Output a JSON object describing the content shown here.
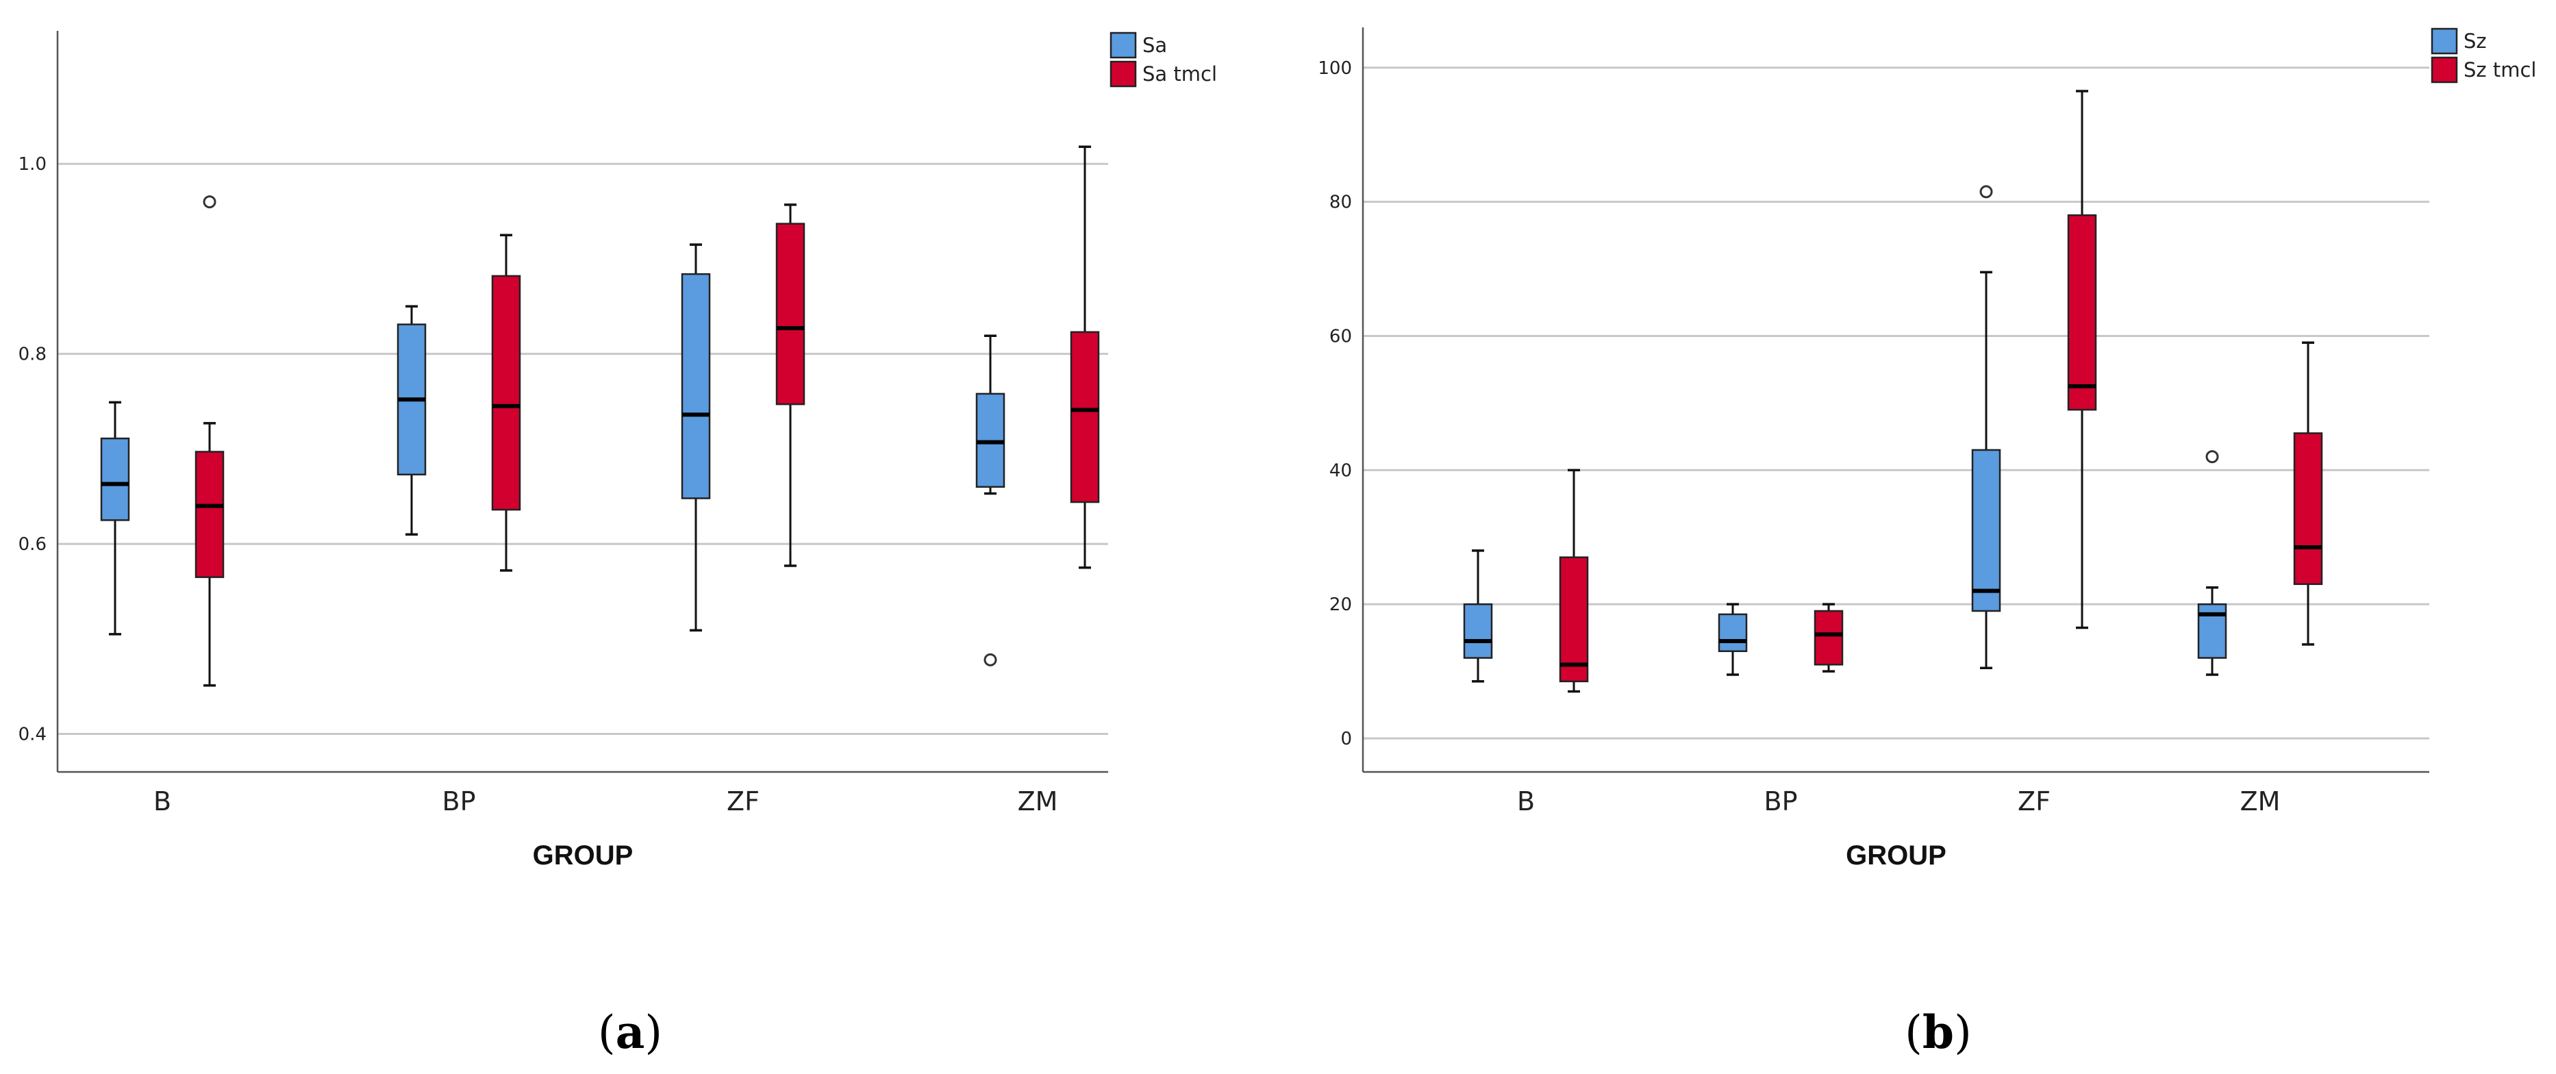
{
  "chart_data": [
    {
      "type": "boxplot",
      "panel_label": "a",
      "xlabel": "GROUP",
      "ylabel": "",
      "ylim": [
        0.36,
        1.14
      ],
      "yticks": [
        0.4,
        0.6,
        0.8,
        1.0
      ],
      "ytick_labels": [
        "0.4",
        "0.6",
        "0.8",
        "1.0"
      ],
      "categories": [
        "B",
        "BP",
        "ZF",
        "ZM"
      ],
      "legend_position": "top-right",
      "series": [
        {
          "name": "Sa",
          "color": "#5b9bdf",
          "boxes": [
            {
              "min": 0.505,
              "q1": 0.625,
              "median": 0.663,
              "q3": 0.711,
              "max": 0.749,
              "outliers": []
            },
            {
              "min": 0.61,
              "q1": 0.673,
              "median": 0.752,
              "q3": 0.831,
              "max": 0.85,
              "outliers": []
            },
            {
              "min": 0.509,
              "q1": 0.648,
              "median": 0.736,
              "q3": 0.884,
              "max": 0.915,
              "outliers": []
            },
            {
              "min": 0.653,
              "q1": 0.66,
              "median": 0.707,
              "q3": 0.758,
              "max": 0.819,
              "outliers": [
                0.478
              ]
            }
          ]
        },
        {
          "name": "Sa tmcl",
          "color": "#d2002e",
          "boxes": [
            {
              "min": 0.451,
              "q1": 0.565,
              "median": 0.64,
              "q3": 0.697,
              "max": 0.727,
              "outliers": [
                0.96
              ]
            },
            {
              "min": 0.572,
              "q1": 0.636,
              "median": 0.745,
              "q3": 0.882,
              "max": 0.925,
              "outliers": []
            },
            {
              "min": 0.577,
              "q1": 0.747,
              "median": 0.827,
              "q3": 0.937,
              "max": 0.957,
              "outliers": []
            },
            {
              "min": 0.575,
              "q1": 0.644,
              "median": 0.741,
              "q3": 0.823,
              "max": 1.018,
              "outliers": []
            }
          ]
        }
      ]
    },
    {
      "type": "boxplot",
      "panel_label": "b",
      "xlabel": "GROUP",
      "ylabel": "",
      "ylim": [
        -5,
        106
      ],
      "yticks": [
        0,
        20,
        40,
        60,
        80,
        100
      ],
      "ytick_labels": [
        "0",
        "20",
        "40",
        "60",
        "80",
        "100"
      ],
      "categories": [
        "B",
        "BP",
        "ZF",
        "ZM"
      ],
      "legend_position": "top-right",
      "series": [
        {
          "name": "Sz",
          "color": "#5b9bdf",
          "boxes": [
            {
              "min": 8.5,
              "q1": 12,
              "median": 14.5,
              "q3": 20,
              "max": 28,
              "outliers": []
            },
            {
              "min": 9.5,
              "q1": 13,
              "median": 14.5,
              "q3": 18.5,
              "max": 20,
              "outliers": []
            },
            {
              "min": 10.5,
              "q1": 19,
              "median": 22,
              "q3": 43,
              "max": 69.5,
              "outliers": [
                81.5
              ]
            },
            {
              "min": 9.5,
              "q1": 12,
              "median": 18.5,
              "q3": 20,
              "max": 22.5,
              "outliers": [
                42
              ]
            }
          ]
        },
        {
          "name": "Sz tmcl",
          "color": "#d2002e",
          "boxes": [
            {
              "min": 7,
              "q1": 8.5,
              "median": 11,
              "q3": 27,
              "max": 40,
              "outliers": []
            },
            {
              "min": 10,
              "q1": 11,
              "median": 15.5,
              "q3": 19,
              "max": 20,
              "outliers": []
            },
            {
              "min": 16.5,
              "q1": 49,
              "median": 52.5,
              "q3": 78,
              "max": 96.5,
              "outliers": []
            },
            {
              "min": 14,
              "q1": 23,
              "median": 28.5,
              "q3": 45.5,
              "max": 59,
              "outliers": []
            }
          ]
        }
      ]
    }
  ]
}
